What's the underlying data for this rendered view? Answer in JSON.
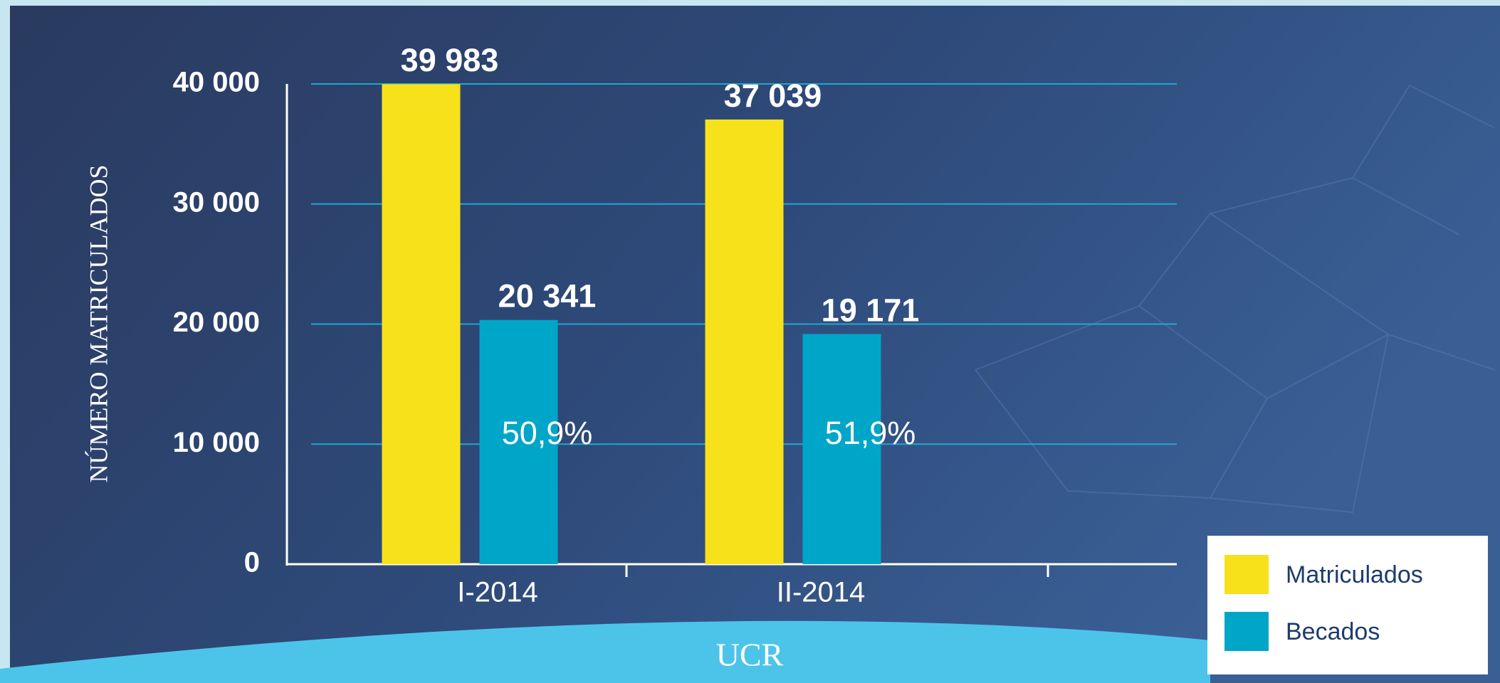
{
  "chart_data": {
    "type": "bar",
    "y_axis_label": "NÚMERO MATRICULADOS",
    "categories": [
      "I-2014",
      "II-2014"
    ],
    "series": [
      {
        "name": "Matriculados",
        "color": "#f7e11b",
        "values": [
          39983,
          37039
        ],
        "value_labels": [
          "39 983",
          "37 039"
        ]
      },
      {
        "name": "Becados",
        "color": "#00a6c8",
        "values": [
          20341,
          19171
        ],
        "value_labels": [
          "20 341",
          "19 171"
        ],
        "annotations": [
          "50,9%",
          "51,9%"
        ]
      }
    ],
    "ylim": [
      0,
      40000
    ],
    "yticks": [
      0,
      {
        "value": 10000,
        "label": "10 000"
      },
      {
        "value": 20000,
        "label": "20 000"
      },
      {
        "value": 30000,
        "label": "30 000"
      },
      {
        "value": 40000,
        "label": "40 000"
      }
    ],
    "grid": true,
    "legend": "lower right",
    "logo": "UCR"
  }
}
